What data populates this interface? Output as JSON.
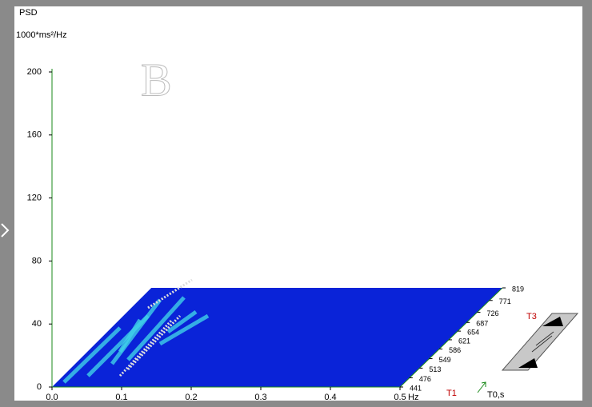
{
  "chart_data": {
    "type": "surface",
    "y_label": "PSD",
    "y_unit": "1000*ms²/Hz",
    "x_label": "Hz",
    "z_label": "T0,s",
    "annotations": [
      "B",
      "T1",
      "T3"
    ],
    "xlim": [
      0,
      0.5
    ],
    "xticks": [
      {
        "value": 0,
        "label": "0.0"
      },
      0.1,
      0.2,
      0.3,
      0.4,
      0.5
    ],
    "ylim": [
      0,
      200
    ],
    "yticks": [
      0,
      40,
      80,
      120,
      160,
      200
    ],
    "zlim": [
      441,
      819
    ],
    "zticks": [
      441,
      476,
      513,
      549,
      586,
      621,
      654,
      687,
      726,
      771,
      819
    ],
    "surface_color": "#0a23d8",
    "axis_color": "#1a8a1a"
  }
}
